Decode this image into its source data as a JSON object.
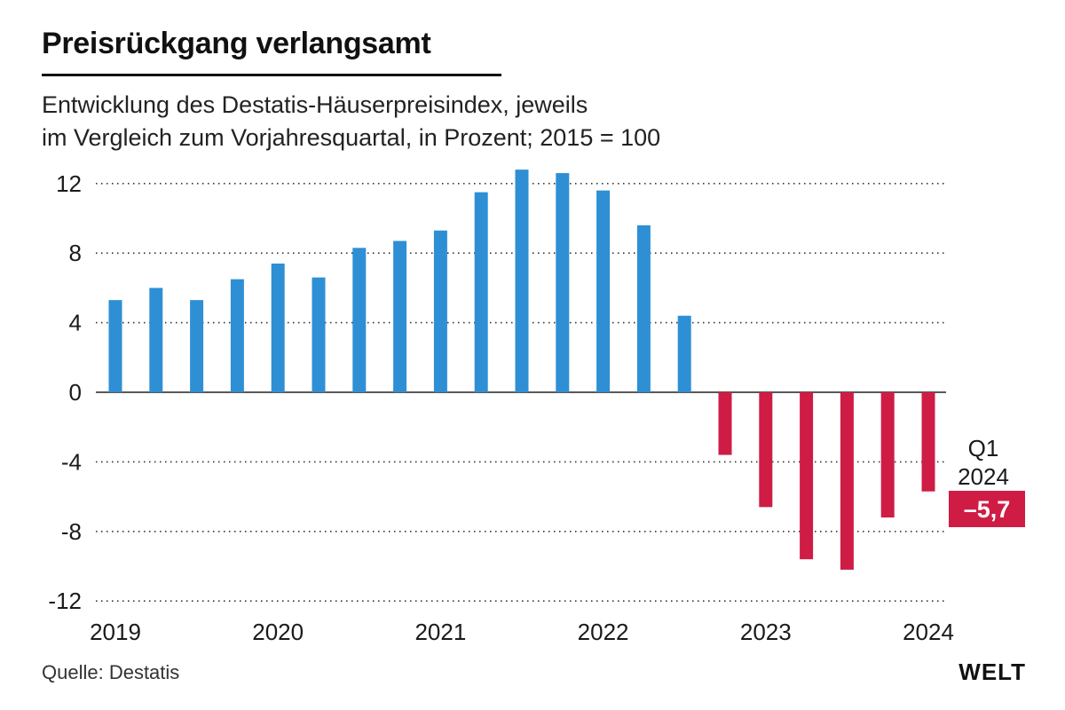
{
  "header": {
    "title": "Preisrückgang verlangsamt",
    "subtitle_line1": "Entwicklung des Destatis-Häuserpreisindex, jeweils",
    "subtitle_line2": "im Vergleich zum Vorjahresquartal, in Prozent; 2015 = 100"
  },
  "footer": {
    "source": "Quelle: Destatis",
    "brand": "WELT"
  },
  "colors": {
    "positive": "#2f8fd4",
    "negative": "#cf1c45",
    "grid": "#333333",
    "text": "#1a1a1a"
  },
  "chart_data": {
    "type": "bar",
    "title": "Preisrückgang verlangsamt",
    "xlabel": "",
    "ylabel": "",
    "ylim": [
      -12,
      13
    ],
    "yticks": [
      12,
      8,
      4,
      0,
      -4,
      -8,
      -12
    ],
    "grid": true,
    "x_year_labels": [
      "2019",
      "2020",
      "2021",
      "2022",
      "2023",
      "2024"
    ],
    "categories": [
      "2019 Q1",
      "2019 Q2",
      "2019 Q3",
      "2019 Q4",
      "2020 Q1",
      "2020 Q2",
      "2020 Q3",
      "2020 Q4",
      "2021 Q1",
      "2021 Q2",
      "2021 Q3",
      "2021 Q4",
      "2022 Q1",
      "2022 Q2",
      "2022 Q3",
      "2022 Q4",
      "2023 Q1",
      "2023 Q2",
      "2023 Q3",
      "2023 Q4",
      "2024 Q1"
    ],
    "values": [
      5.3,
      6.0,
      5.3,
      6.5,
      7.4,
      6.6,
      8.3,
      8.7,
      9.3,
      11.5,
      12.8,
      12.6,
      11.6,
      9.6,
      4.4,
      -3.6,
      -6.6,
      -9.6,
      -10.2,
      -7.2,
      -5.7
    ],
    "annotation": {
      "label_line1": "Q1",
      "label_line2": "2024",
      "value_label": "–5,7"
    }
  }
}
